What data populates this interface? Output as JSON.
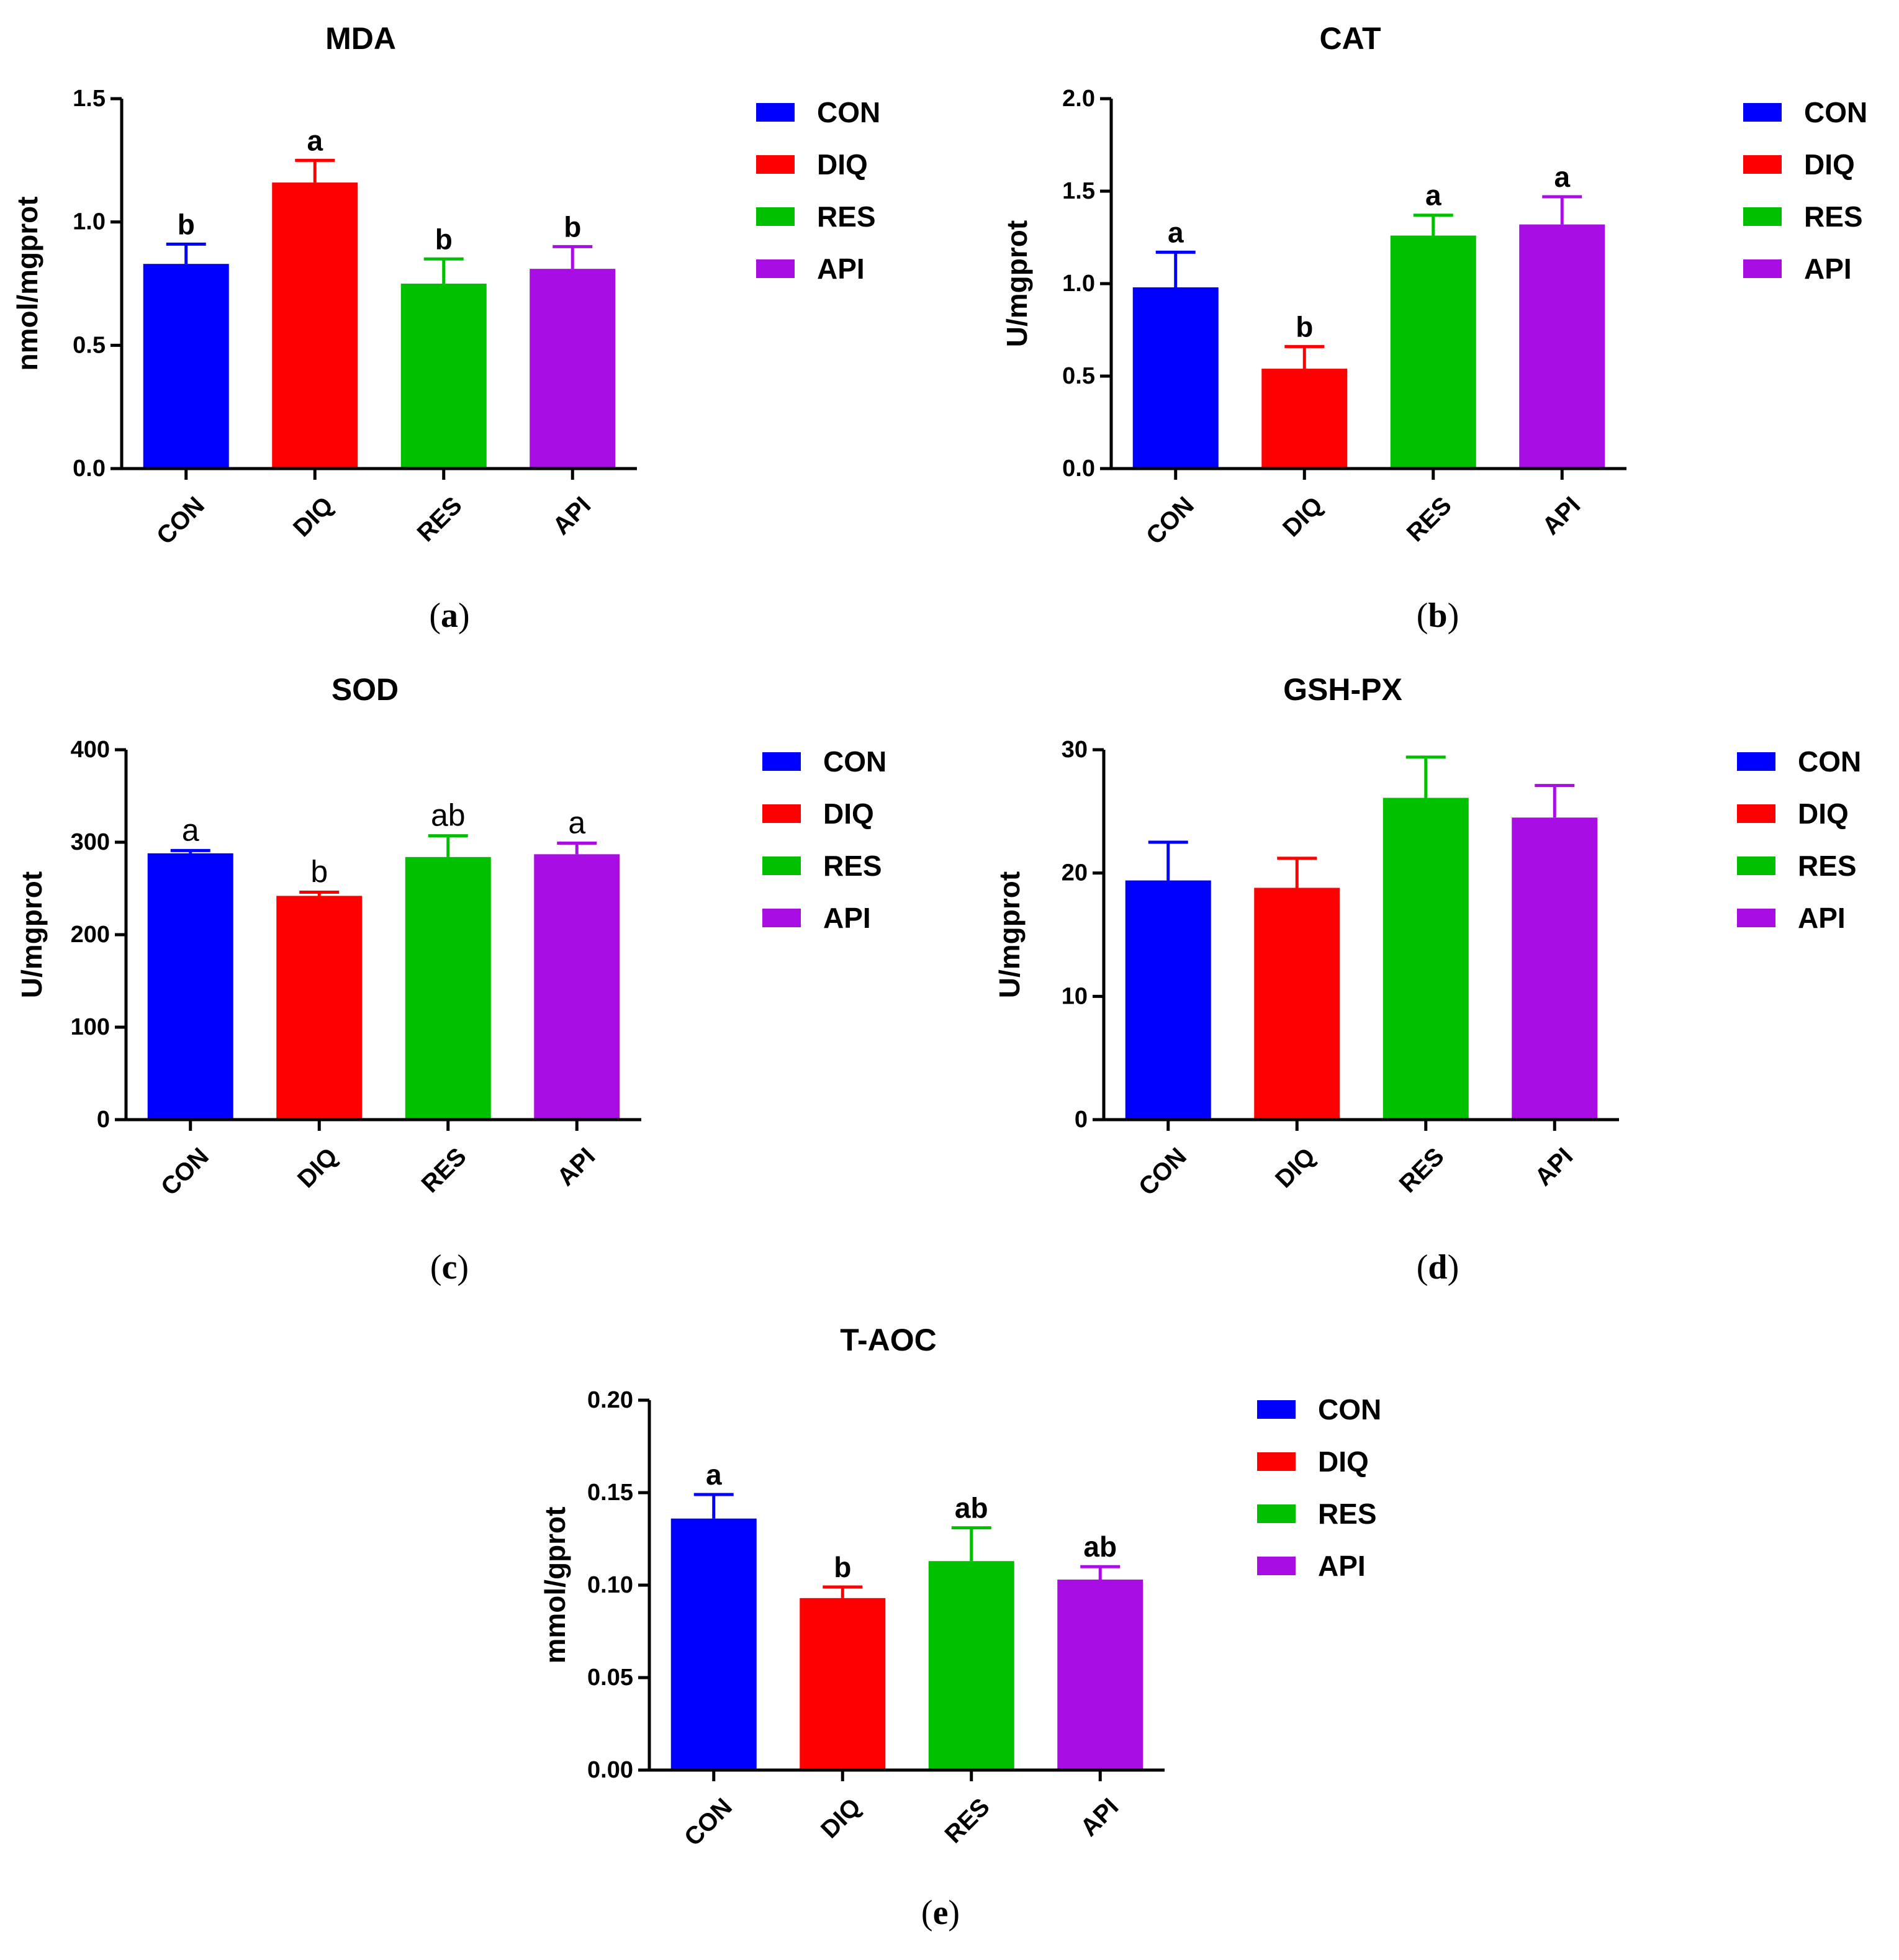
{
  "chart_data": [
    {
      "id": "a",
      "panel_label": "a",
      "type": "bar",
      "title": "MDA",
      "ylabel": "nmol/mgprot",
      "xlabel": "",
      "categories": [
        "CON",
        "DIQ",
        "RES",
        "API"
      ],
      "values": [
        0.83,
        1.16,
        0.75,
        0.81
      ],
      "errors": [
        0.08,
        0.09,
        0.1,
        0.09
      ],
      "significance": [
        "b",
        "a",
        "b",
        "b"
      ],
      "significance_style": "bold",
      "ylim": [
        0,
        1.5
      ],
      "yticks": [
        0,
        0.5,
        1.0,
        1.5
      ],
      "ytick_labels": [
        "0.0",
        "0.5",
        "1.0",
        "1.5"
      ],
      "legend": [
        "CON",
        "DIQ",
        "RES",
        "API"
      ],
      "legend_position": "right"
    },
    {
      "id": "b",
      "panel_label": "b",
      "type": "bar",
      "title": "CAT",
      "ylabel": "U/mgprot",
      "xlabel": "",
      "categories": [
        "CON",
        "DIQ",
        "RES",
        "API"
      ],
      "values": [
        0.98,
        0.54,
        1.26,
        1.32
      ],
      "errors": [
        0.19,
        0.12,
        0.11,
        0.15
      ],
      "significance": [
        "a",
        "b",
        "a",
        "a"
      ],
      "significance_style": "bold",
      "ylim": [
        0,
        2.0
      ],
      "yticks": [
        0,
        0.5,
        1.0,
        1.5,
        2.0
      ],
      "ytick_labels": [
        "0.0",
        "0.5",
        "1.0",
        "1.5",
        "2.0"
      ],
      "legend": [
        "CON",
        "DIQ",
        "RES",
        "API"
      ],
      "legend_position": "right"
    },
    {
      "id": "c",
      "panel_label": "c",
      "type": "bar",
      "title": "SOD",
      "ylabel": "U/mgprot",
      "xlabel": "",
      "categories": [
        "CON",
        "DIQ",
        "RES",
        "API"
      ],
      "values": [
        288,
        242,
        284,
        287
      ],
      "errors": [
        3,
        4,
        23,
        12
      ],
      "significance": [
        "a",
        "b",
        "ab",
        "a"
      ],
      "significance_style": "plain",
      "ylim": [
        0,
        400
      ],
      "yticks": [
        0,
        100,
        200,
        300,
        400
      ],
      "ytick_labels": [
        "0",
        "100",
        "200",
        "300",
        "400"
      ],
      "legend": [
        "CON",
        "DIQ",
        "RES",
        "API"
      ],
      "legend_position": "right"
    },
    {
      "id": "d",
      "panel_label": "d",
      "type": "bar",
      "title": "GSH-PX",
      "ylabel": "U/mgprot",
      "xlabel": "",
      "categories": [
        "CON",
        "DIQ",
        "RES",
        "API"
      ],
      "values": [
        19.4,
        18.8,
        26.1,
        24.5
      ],
      "errors": [
        3.1,
        2.4,
        3.3,
        2.6
      ],
      "significance": [
        "",
        "",
        "",
        ""
      ],
      "significance_style": "bold",
      "ylim": [
        0,
        30
      ],
      "yticks": [
        0,
        10,
        20,
        30
      ],
      "ytick_labels": [
        "0",
        "10",
        "20",
        "30"
      ],
      "legend": [
        "CON",
        "DIQ",
        "RES",
        "API"
      ],
      "legend_position": "right"
    },
    {
      "id": "e",
      "panel_label": "e",
      "type": "bar",
      "title": "T-AOC",
      "ylabel": "mmol/gprot",
      "xlabel": "",
      "categories": [
        "CON",
        "DIQ",
        "RES",
        "API"
      ],
      "values": [
        0.136,
        0.093,
        0.113,
        0.103
      ],
      "errors": [
        0.013,
        0.006,
        0.018,
        0.007
      ],
      "significance": [
        "a",
        "b",
        "ab",
        "ab"
      ],
      "significance_style": "bold",
      "ylim": [
        0,
        0.2
      ],
      "yticks": [
        0,
        0.05,
        0.1,
        0.15,
        0.2
      ],
      "ytick_labels": [
        "0.00",
        "0.05",
        "0.10",
        "0.15",
        "0.20"
      ],
      "legend": [
        "CON",
        "DIQ",
        "RES",
        "API"
      ],
      "legend_position": "right"
    }
  ],
  "colors": {
    "CON": "#0000ff",
    "DIQ": "#ff0000",
    "RES": "#00c000",
    "API": "#a80ee4"
  }
}
